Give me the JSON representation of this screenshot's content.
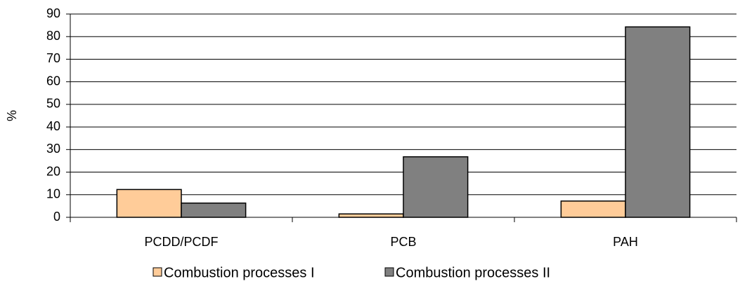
{
  "chart_data": {
    "type": "bar",
    "y_label": "%",
    "categories": [
      "PCDD/PCDF",
      "PCB",
      "PAH"
    ],
    "series": [
      {
        "name": "Combustion processes I",
        "color": "#ffcc99",
        "values": [
          12.3,
          1.5,
          7.2
        ]
      },
      {
        "name": "Combustion processes II",
        "color": "#808080",
        "values": [
          6.3,
          26.8,
          84.3
        ]
      }
    ],
    "ylim": [
      0,
      90
    ],
    "yticks": [
      0,
      10,
      20,
      30,
      40,
      50,
      60,
      70,
      80,
      90
    ],
    "grid": true
  }
}
